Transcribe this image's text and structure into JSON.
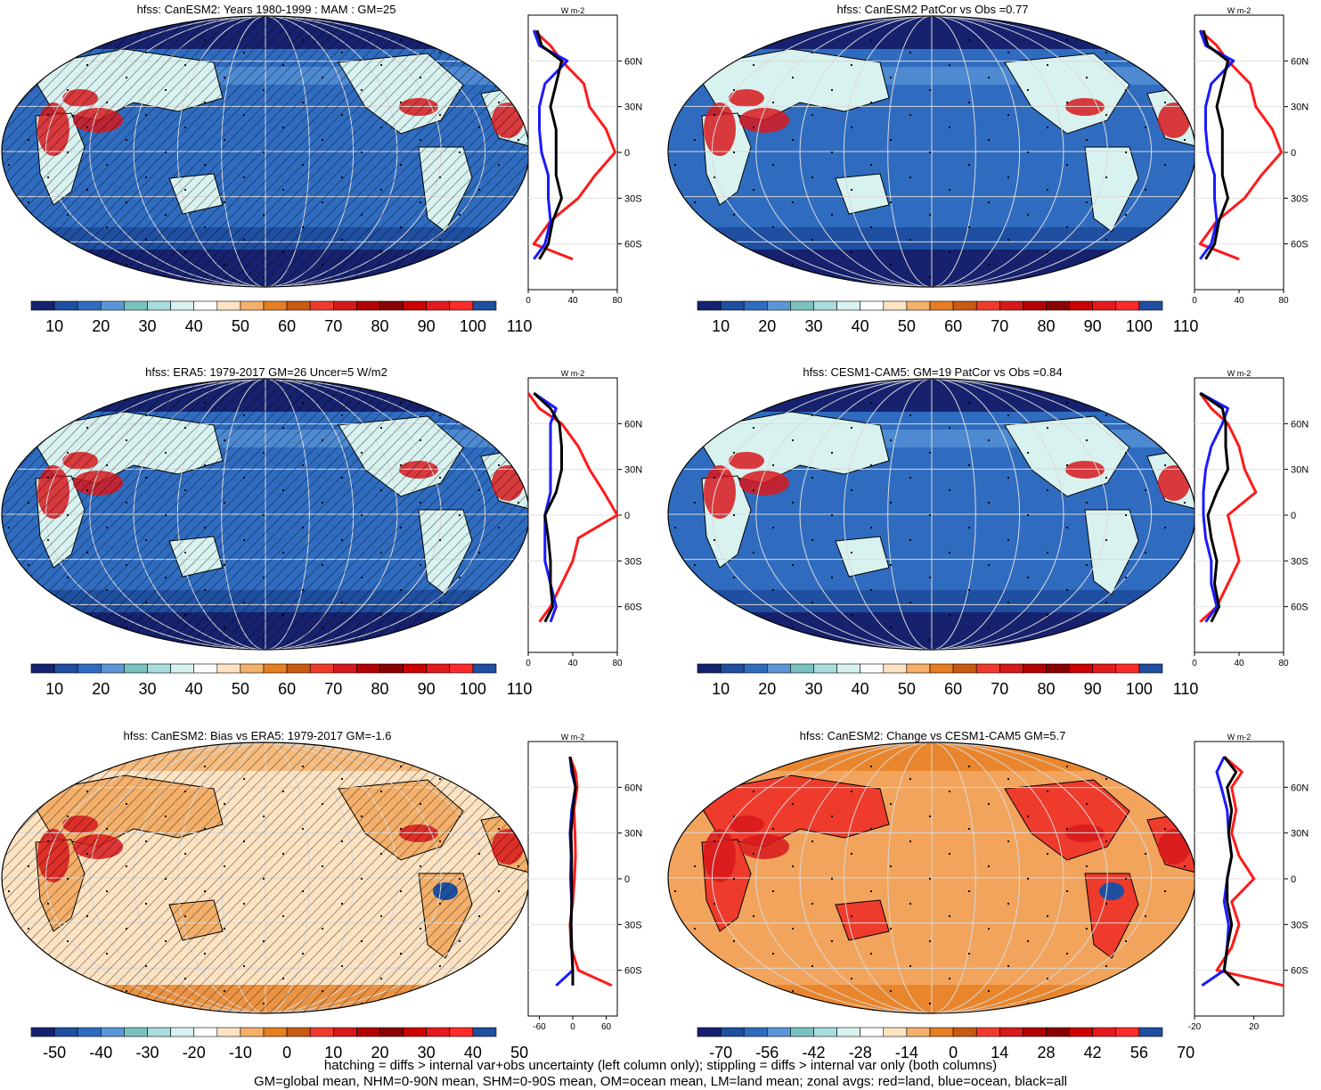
{
  "colors": {
    "land": "#ff1a1a",
    "ocean": "#1a1aff",
    "all": "#000000",
    "grid": "#d9d9d9",
    "palette_abs": [
      "#16226e",
      "#1f4fa0",
      "#2f6cc0",
      "#5b97d8",
      "#79c2c0",
      "#a9dcdc",
      "#d8f2f0",
      "#ffffff",
      "#fde3c2",
      "#f4b06a",
      "#e67e22",
      "#c95a12",
      "#ef3b2c",
      "#d7191c",
      "#b30000",
      "#8b0000",
      "#cc0000",
      "#e31a1c",
      "#ff2a2a",
      "#1f4fa0"
    ],
    "palette_diff": [
      "#16226e",
      "#1f4fa0",
      "#2f6cc0",
      "#5b97d8",
      "#79c2c0",
      "#a9dcdc",
      "#d8f2f0",
      "#ffffff",
      "#fde3c2",
      "#f4b06a",
      "#e67e22",
      "#c95a12",
      "#ef3b2c",
      "#d7191c",
      "#b30000",
      "#8b0000",
      "#cc0000",
      "#e31a1c",
      "#ff2a2a",
      "#1f4fa0"
    ]
  },
  "footer": {
    "line1": "hatching = diffs > internal var+obs uncertainty (left column only); stippling = diffs > internal var only (both columns)",
    "line2": "GM=global mean, NHM=0-90N mean, SHM=0-90S mean, OM=ocean mean, LM=land mean; zonal avgs: red=land, blue=ocean, black=all"
  },
  "chart_data": [
    {
      "type": "map",
      "title": "hfss: CanESM2: Years 1980-1999 : MAM : GM=25",
      "colorbar_ticks": [
        "10",
        "20",
        "30",
        "40",
        "50",
        "60",
        "70",
        "80",
        "90",
        "100",
        "110"
      ],
      "zonal": {
        "unit": "W m-2",
        "xlim": [
          0,
          80
        ],
        "xticks": [
          "0",
          "40",
          "80"
        ],
        "yticks": [
          "60N",
          "30N",
          "0",
          "30S",
          "60S"
        ],
        "lat": [
          80,
          70,
          60,
          45,
          30,
          15,
          0,
          -15,
          -30,
          -45,
          -60,
          -70
        ],
        "land": [
          5,
          20,
          30,
          50,
          55,
          70,
          78,
          60,
          45,
          20,
          5,
          40
        ],
        "ocean": [
          5,
          10,
          35,
          15,
          10,
          10,
          12,
          18,
          18,
          20,
          15,
          5
        ],
        "all": [
          8,
          12,
          30,
          25,
          20,
          25,
          25,
          25,
          30,
          22,
          18,
          10
        ]
      }
    },
    {
      "type": "map",
      "title": "hfss: CanESM2 PatCor vs Obs =0.77",
      "colorbar_ticks": [
        "10",
        "20",
        "30",
        "40",
        "50",
        "60",
        "70",
        "80",
        "90",
        "100",
        "110"
      ],
      "zonal": {
        "unit": "W m-2",
        "xlim": [
          0,
          80
        ],
        "xticks": [
          "0",
          "40",
          "80"
        ],
        "yticks": [
          "60N",
          "30N",
          "0",
          "30S",
          "60S"
        ],
        "lat": [
          80,
          70,
          60,
          45,
          30,
          15,
          0,
          -15,
          -30,
          -45,
          -60,
          -70
        ],
        "land": [
          5,
          20,
          30,
          50,
          55,
          70,
          78,
          60,
          45,
          20,
          5,
          40
        ],
        "ocean": [
          5,
          10,
          35,
          15,
          10,
          10,
          12,
          18,
          18,
          20,
          15,
          5
        ],
        "all": [
          8,
          12,
          30,
          25,
          20,
          25,
          25,
          25,
          30,
          22,
          18,
          10
        ]
      }
    },
    {
      "type": "map",
      "title": "hfss: ERA5: 1979-2017 GM=26 Uncer=5 W/m2",
      "colorbar_ticks": [
        "10",
        "20",
        "30",
        "40",
        "50",
        "60",
        "70",
        "80",
        "90",
        "100",
        "110"
      ],
      "zonal": {
        "unit": "W m-2",
        "xlim": [
          0,
          80
        ],
        "xticks": [
          "0",
          "40",
          "80"
        ],
        "yticks": [
          "60N",
          "30N",
          "0",
          "30S",
          "60S"
        ],
        "lat": [
          80,
          70,
          60,
          45,
          30,
          15,
          0,
          -15,
          -30,
          -45,
          -60,
          -70
        ],
        "land": [
          0,
          10,
          30,
          45,
          55,
          68,
          80,
          45,
          40,
          30,
          20,
          10
        ],
        "ocean": [
          5,
          25,
          20,
          20,
          20,
          20,
          15,
          15,
          15,
          20,
          25,
          20
        ],
        "all": [
          5,
          20,
          28,
          30,
          30,
          25,
          15,
          18,
          20,
          20,
          22,
          15
        ]
      }
    },
    {
      "type": "map",
      "title": "hfss: CESM1-CAM5: GM=19 PatCor vs Obs =0.84",
      "colorbar_ticks": [
        "10",
        "20",
        "30",
        "40",
        "50",
        "60",
        "70",
        "80",
        "90",
        "100",
        "110"
      ],
      "zonal": {
        "unit": "W m-2",
        "xlim": [
          0,
          80
        ],
        "xticks": [
          "0",
          "40",
          "80"
        ],
        "yticks": [
          "60N",
          "30N",
          "0",
          "30S",
          "60S"
        ],
        "lat": [
          80,
          70,
          60,
          45,
          30,
          15,
          0,
          -15,
          -30,
          -45,
          -60,
          -70
        ],
        "land": [
          5,
          15,
          30,
          40,
          45,
          55,
          30,
          35,
          40,
          30,
          20,
          5
        ],
        "ocean": [
          5,
          30,
          25,
          15,
          10,
          8,
          8,
          10,
          15,
          15,
          20,
          10
        ],
        "all": [
          5,
          25,
          28,
          28,
          30,
          20,
          12,
          15,
          20,
          18,
          22,
          15
        ]
      }
    },
    {
      "type": "map",
      "title": "hfss: CanESM2: Bias vs ERA5: 1979-2017 GM=-1.6",
      "colorbar_ticks": [
        "-50",
        "-40",
        "-30",
        "-20",
        "-10",
        "0",
        "10",
        "20",
        "30",
        "40",
        "50"
      ],
      "zonal": {
        "unit": "W m-2",
        "xlim": [
          -80,
          80
        ],
        "xticks": [
          "-60",
          "0",
          "60"
        ],
        "yticks": [
          "60N",
          "30N",
          "0",
          "30S",
          "60S"
        ],
        "lat": [
          80,
          70,
          60,
          45,
          30,
          15,
          0,
          -15,
          -30,
          -45,
          -60,
          -70
        ],
        "land": [
          -5,
          5,
          8,
          2,
          4,
          5,
          3,
          0,
          -5,
          -3,
          10,
          70
        ],
        "ocean": [
          -5,
          -2,
          5,
          -2,
          -5,
          -3,
          -4,
          -2,
          -3,
          -2,
          0,
          -30
        ],
        "all": [
          -5,
          0,
          5,
          0,
          -3,
          -2,
          -2,
          -2,
          -3,
          -2,
          0,
          0
        ]
      }
    },
    {
      "type": "map",
      "title": "hfss: CanESM2: Change vs CESM1-CAM5 GM=5.7",
      "colorbar_ticks": [
        "-70",
        "-56",
        "-42",
        "-28",
        "-14",
        "0",
        "14",
        "28",
        "42",
        "56",
        "70"
      ],
      "zonal": {
        "unit": "W m-2",
        "xlim": [
          -20,
          40
        ],
        "xticks": [
          "-20",
          "20"
        ],
        "yticks": [
          "60N",
          "30N",
          "0",
          "30S",
          "60S"
        ],
        "lat": [
          80,
          70,
          60,
          45,
          30,
          15,
          0,
          -15,
          -30,
          -45,
          -60,
          -70
        ],
        "land": [
          0,
          12,
          5,
          8,
          5,
          10,
          20,
          5,
          10,
          5,
          -5,
          40
        ],
        "ocean": [
          0,
          -5,
          -2,
          2,
          3,
          5,
          2,
          0,
          3,
          2,
          0,
          -15
        ],
        "all": [
          0,
          8,
          2,
          5,
          3,
          5,
          2,
          2,
          5,
          2,
          0,
          10
        ]
      }
    }
  ]
}
